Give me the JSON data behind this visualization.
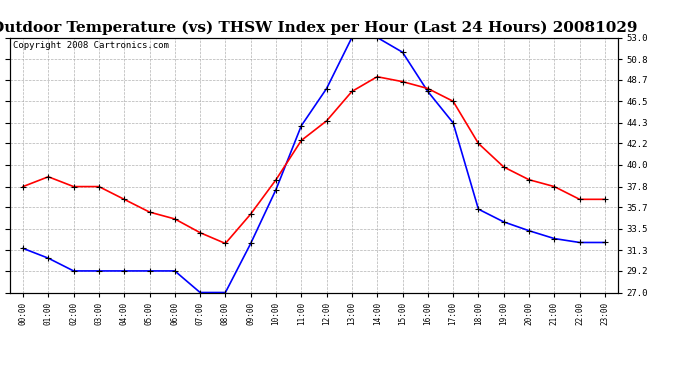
{
  "title": "Outdoor Temperature (vs) THSW Index per Hour (Last 24 Hours) 20081029",
  "copyright": "Copyright 2008 Cartronics.com",
  "hours": [
    "00:00",
    "01:00",
    "02:00",
    "03:00",
    "04:00",
    "05:00",
    "06:00",
    "07:00",
    "08:00",
    "09:00",
    "10:00",
    "11:00",
    "12:00",
    "13:00",
    "14:00",
    "15:00",
    "16:00",
    "17:00",
    "18:00",
    "19:00",
    "20:00",
    "21:00",
    "22:00",
    "23:00"
  ],
  "red_temp": [
    37.8,
    38.8,
    37.8,
    37.8,
    36.5,
    35.2,
    34.5,
    33.1,
    32.0,
    35.0,
    38.5,
    42.5,
    44.5,
    47.5,
    49.0,
    48.5,
    47.8,
    46.5,
    42.2,
    39.8,
    38.5,
    37.8,
    36.5,
    36.5
  ],
  "blue_thsw": [
    31.5,
    30.5,
    29.2,
    29.2,
    29.2,
    29.2,
    29.2,
    27.0,
    27.0,
    32.0,
    37.5,
    44.0,
    47.8,
    53.0,
    53.0,
    51.5,
    47.5,
    44.3,
    35.5,
    34.2,
    33.3,
    32.5,
    32.1,
    32.1
  ],
  "ylim_min": 27.0,
  "ylim_max": 53.0,
  "yticks": [
    27.0,
    29.2,
    31.3,
    33.5,
    35.7,
    37.8,
    40.0,
    42.2,
    44.3,
    46.5,
    48.7,
    50.8,
    53.0
  ],
  "red_color": "#ff0000",
  "blue_color": "#0000ff",
  "bg_color": "#ffffff",
  "grid_color": "#aaaaaa",
  "title_fontsize": 11,
  "copyright_fontsize": 6.5
}
